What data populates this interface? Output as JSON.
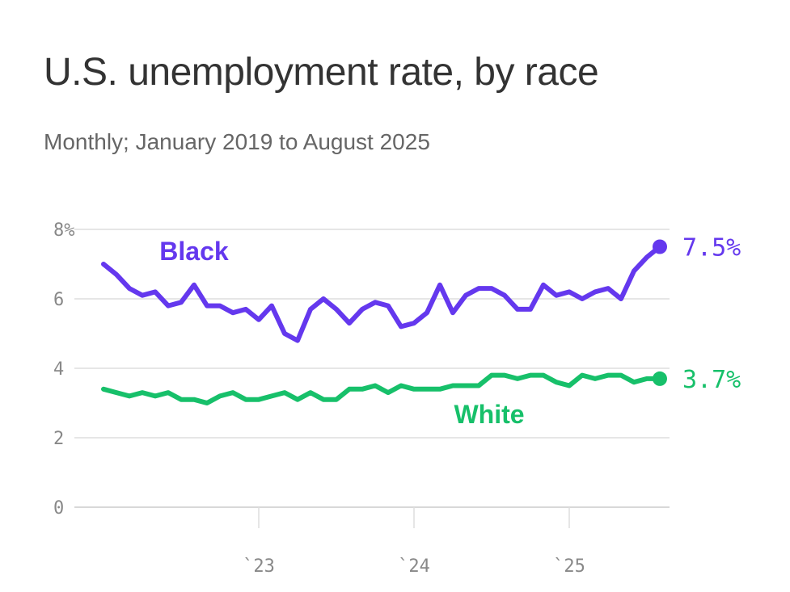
{
  "title": "U.S. unemployment rate, by race",
  "subtitle": "Monthly; January 2019 to August 2025",
  "chart_data": {
    "type": "line",
    "title": "U.S. unemployment rate, by race",
    "subtitle": "Monthly; January 2019 to August 2025",
    "x_start": "2022-01",
    "x_end": "2025-08",
    "x_ticks": [
      {
        "date": "2023-01",
        "label": "`23"
      },
      {
        "date": "2024-01",
        "label": "`24"
      },
      {
        "date": "2025-01",
        "label": "`25"
      }
    ],
    "y_ticks": [
      {
        "value": 0,
        "label": "0"
      },
      {
        "value": 2,
        "label": "2"
      },
      {
        "value": 4,
        "label": "4"
      },
      {
        "value": 6,
        "label": "6"
      },
      {
        "value": 8,
        "label": "8%"
      }
    ],
    "ylim": [
      0,
      8
    ],
    "grid": true,
    "series": [
      {
        "name": "Black",
        "color": "#6438ee",
        "end_label": "7.5%",
        "values": [
          7.0,
          6.7,
          6.3,
          6.1,
          6.2,
          5.8,
          5.9,
          6.4,
          5.8,
          5.8,
          5.6,
          5.7,
          5.4,
          5.8,
          5.0,
          4.8,
          5.7,
          6.0,
          5.7,
          5.3,
          5.7,
          5.9,
          5.8,
          5.2,
          5.3,
          5.6,
          6.4,
          5.6,
          6.1,
          6.3,
          6.3,
          6.1,
          5.7,
          5.7,
          6.4,
          6.1,
          6.2,
          6.0,
          6.2,
          6.3,
          6.0,
          6.8,
          7.2,
          7.5
        ]
      },
      {
        "name": "White",
        "color": "#17c06a",
        "end_label": "3.7%",
        "values": [
          3.4,
          3.3,
          3.2,
          3.3,
          3.2,
          3.3,
          3.1,
          3.1,
          3.0,
          3.2,
          3.3,
          3.1,
          3.1,
          3.2,
          3.3,
          3.1,
          3.3,
          3.1,
          3.1,
          3.4,
          3.4,
          3.5,
          3.3,
          3.5,
          3.4,
          3.4,
          3.4,
          3.5,
          3.5,
          3.5,
          3.8,
          3.8,
          3.7,
          3.8,
          3.8,
          3.6,
          3.5,
          3.8,
          3.7,
          3.8,
          3.8,
          3.6,
          3.7,
          3.7
        ]
      }
    ]
  }
}
